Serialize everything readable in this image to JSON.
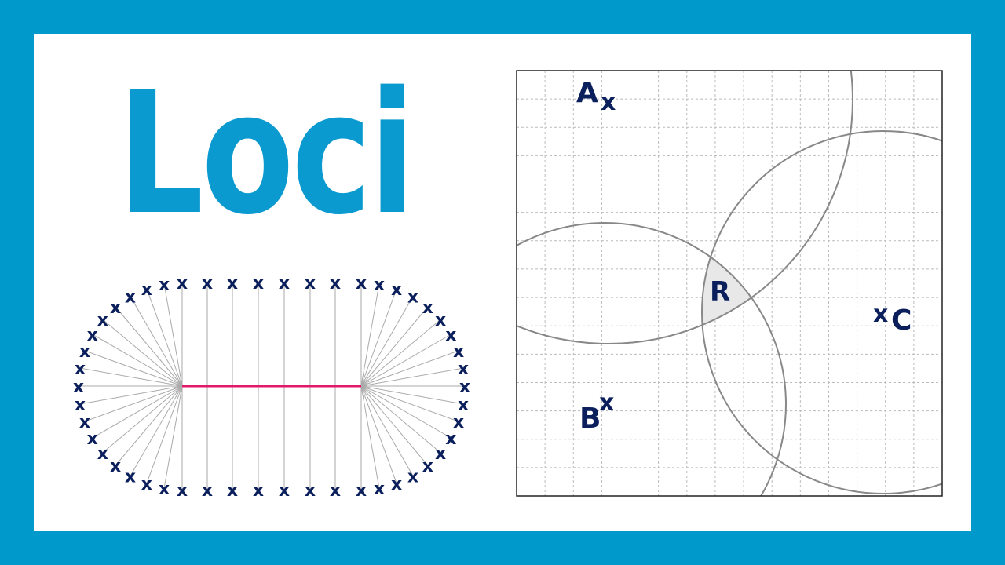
{
  "title": "Loci",
  "colors": {
    "frame": "#0099cc",
    "title": "#0a9ad0",
    "marks": "#0b1f5c",
    "segment": "#e0196a",
    "construction": "#aaaaaa",
    "circle": "#888888",
    "region": "#e8e8e8"
  },
  "left_diagram": {
    "cross_glyph": "x"
  },
  "right_diagram": {
    "grid_cells": 15,
    "points": [
      {
        "label": "A"
      },
      {
        "label": "B"
      },
      {
        "label": "C"
      }
    ],
    "region_label": "R",
    "cross_glyph": "x"
  }
}
